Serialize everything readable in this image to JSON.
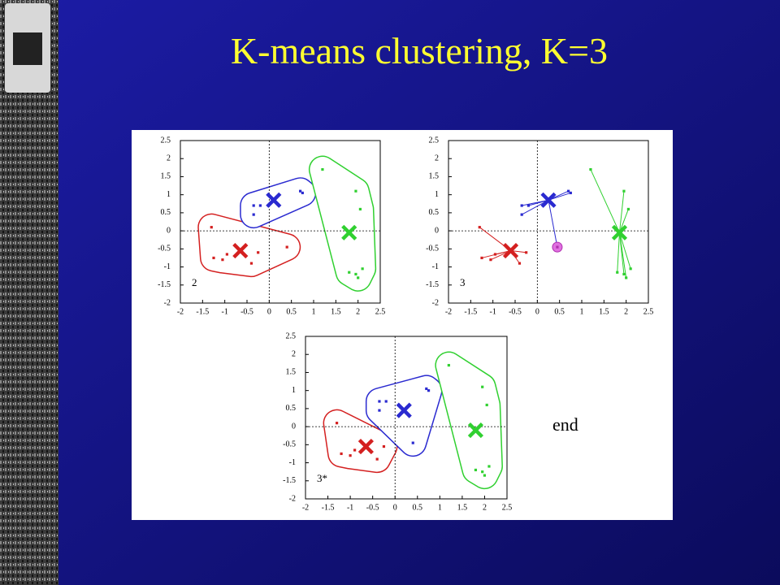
{
  "title": "K-means clustering, K=3",
  "end_label": "end",
  "chart_data": [
    {
      "type": "scatter",
      "annotation": "2",
      "outlines": true,
      "assignment_lines": false,
      "xlim": [
        -2,
        2.5
      ],
      "ylim": [
        -2,
        2.5
      ],
      "xticks": [
        -2,
        -1.5,
        -1,
        -0.5,
        0,
        0.5,
        1,
        1.5,
        2,
        2.5
      ],
      "yticks": [
        -2,
        -1.5,
        -1,
        -0.5,
        0,
        0.5,
        1,
        1.5,
        2,
        2.5
      ],
      "series": [
        {
          "color": "#d42020",
          "x": [
            -1.3,
            -1.25,
            -1.05,
            -0.95,
            -0.4,
            -0.25,
            0.4
          ],
          "y": [
            0.1,
            -0.75,
            -0.8,
            -0.65,
            -0.9,
            -0.6,
            -0.45
          ],
          "centroid": [
            -0.65,
            -0.55
          ]
        },
        {
          "color": "#2a2ad0",
          "x": [
            -0.35,
            -0.2,
            -0.35,
            0.7,
            0.75
          ],
          "y": [
            0.7,
            0.7,
            0.45,
            1.1,
            1.05
          ],
          "centroid": [
            0.1,
            0.85
          ]
        },
        {
          "color": "#30d030",
          "x": [
            1.2,
            1.95,
            2.05,
            1.8,
            1.95,
            2.0,
            2.1
          ],
          "y": [
            1.7,
            1.1,
            0.6,
            -1.15,
            -1.2,
            -1.3,
            -1.05
          ],
          "centroid": [
            1.8,
            -0.05
          ]
        }
      ]
    },
    {
      "type": "scatter",
      "annotation": "3",
      "outlines": false,
      "assignment_lines": true,
      "xlim": [
        -2,
        2.5
      ],
      "ylim": [
        -2,
        2.5
      ],
      "xticks": [
        -2,
        -1.5,
        -1,
        -0.5,
        0,
        0.5,
        1,
        1.5,
        2,
        2.5
      ],
      "yticks": [
        -2,
        -1.5,
        -1,
        -0.5,
        0,
        0.5,
        1,
        1.5,
        2,
        2.5
      ],
      "series": [
        {
          "color": "#d42020",
          "x": [
            -1.3,
            -1.25,
            -1.05,
            -0.95,
            -0.4,
            -0.25
          ],
          "y": [
            0.1,
            -0.75,
            -0.8,
            -0.65,
            -0.9,
            -0.6
          ],
          "centroid": [
            -0.6,
            -0.55
          ]
        },
        {
          "color": "#2a2ad0",
          "x": [
            -0.35,
            -0.2,
            -0.35,
            0.7,
            0.75
          ],
          "y": [
            0.7,
            0.7,
            0.45,
            1.1,
            1.05
          ],
          "centroid": [
            0.25,
            0.85
          ]
        },
        {
          "color": "#30d030",
          "x": [
            1.2,
            1.95,
            2.05,
            1.8,
            1.95,
            2.0,
            2.1
          ],
          "y": [
            1.7,
            1.1,
            0.6,
            -1.15,
            -1.2,
            -1.3,
            -1.05
          ],
          "centroid": [
            1.85,
            -0.05
          ]
        },
        {
          "color": "#e070e0",
          "x": [
            0.45
          ],
          "y": [
            -0.45
          ],
          "cluster": 1,
          "highlight": true
        }
      ]
    },
    {
      "type": "scatter",
      "annotation": "3*",
      "outlines": true,
      "assignment_lines": false,
      "xlim": [
        -2,
        2.5
      ],
      "ylim": [
        -2,
        2.5
      ],
      "xticks": [
        -2,
        -1.5,
        -1,
        -0.5,
        0,
        0.5,
        1,
        1.5,
        2,
        2.5
      ],
      "yticks": [
        -2,
        -1.5,
        -1,
        -0.5,
        0,
        0.5,
        1,
        1.5,
        2,
        2.5
      ],
      "series": [
        {
          "color": "#d42020",
          "x": [
            -1.3,
            -1.2,
            -1.0,
            -0.9,
            -0.4,
            -0.25
          ],
          "y": [
            0.1,
            -0.75,
            -0.8,
            -0.65,
            -0.9,
            -0.55
          ],
          "centroid": [
            -0.65,
            -0.55
          ]
        },
        {
          "color": "#2a2ad0",
          "x": [
            -0.35,
            -0.2,
            -0.35,
            0.7,
            0.75,
            0.4
          ],
          "y": [
            0.7,
            0.7,
            0.45,
            1.05,
            1.0,
            -0.45
          ],
          "centroid": [
            0.2,
            0.45
          ]
        },
        {
          "color": "#30d030",
          "x": [
            1.2,
            1.95,
            2.05,
            1.8,
            1.95,
            2.0,
            2.1
          ],
          "y": [
            1.7,
            1.1,
            0.6,
            -1.2,
            -1.25,
            -1.35,
            -1.1
          ],
          "centroid": [
            1.8,
            -0.1
          ]
        }
      ]
    }
  ]
}
